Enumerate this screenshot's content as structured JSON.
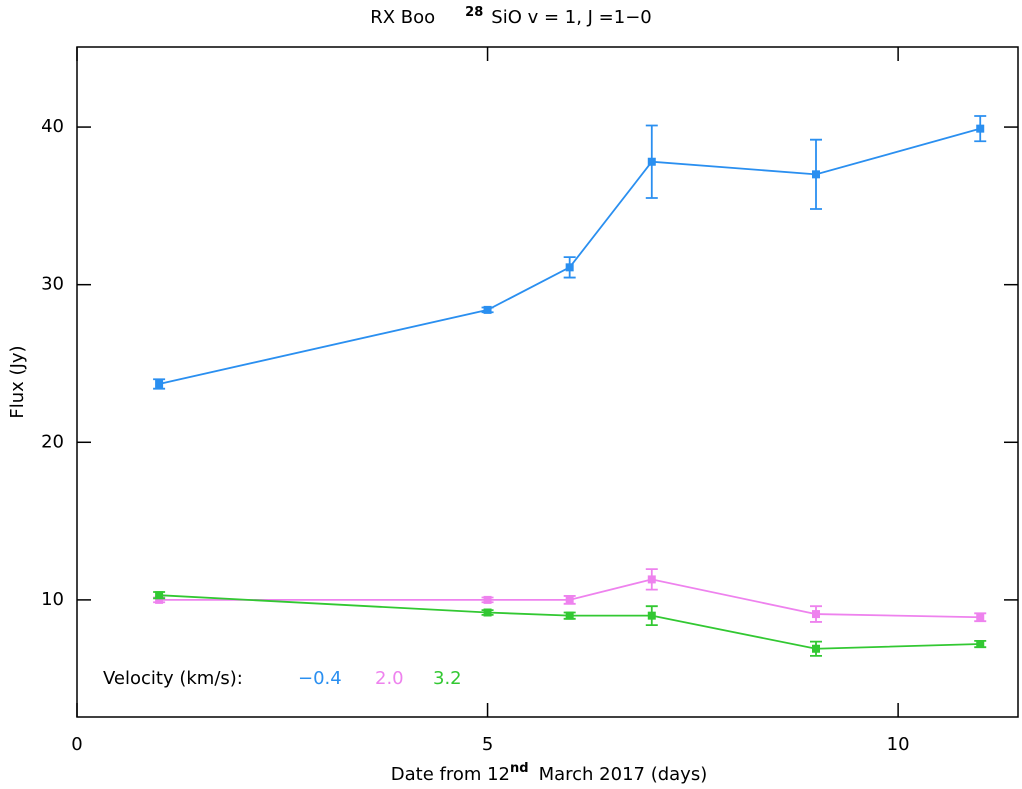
{
  "chart_data": {
    "type": "line",
    "title": "RX Boo",
    "title_isotope": "28",
    "title_molecule": "SiO v = 1, J =1−0",
    "x_label": "Date from 12",
    "x_label_superscript": "nd",
    "x_label_rest": "March 2017 (days)",
    "y_label": "Flux (Jy)",
    "legend_title": "Velocity (km/s):",
    "x": [
      1,
      5,
      6,
      7,
      9,
      11
    ],
    "series": [
      {
        "name": "−0.4",
        "color": "#2a8ff0",
        "values": [
          23.7,
          28.4,
          31.1,
          37.8,
          37.0,
          39.9
        ],
        "errors": [
          0.3,
          0.15,
          0.65,
          2.3,
          2.2,
          0.8
        ]
      },
      {
        "name": "2.0",
        "color": "#ee82ee",
        "values": [
          10.0,
          10.0,
          10.0,
          11.3,
          9.1,
          8.9
        ],
        "errors": [
          0.15,
          0.15,
          0.25,
          0.65,
          0.5,
          0.25
        ]
      },
      {
        "name": "3.2",
        "color": "#32c832",
        "values": [
          10.3,
          9.2,
          9.0,
          9.0,
          6.9,
          7.2
        ],
        "errors": [
          0.2,
          0.15,
          0.2,
          0.6,
          0.45,
          0.2
        ]
      }
    ],
    "xlim": [
      0,
      11.46
    ],
    "xticks": [
      0,
      5,
      10
    ],
    "ylim": [
      2.57,
      45.08
    ],
    "yticks": [
      10,
      20,
      30,
      40
    ]
  }
}
